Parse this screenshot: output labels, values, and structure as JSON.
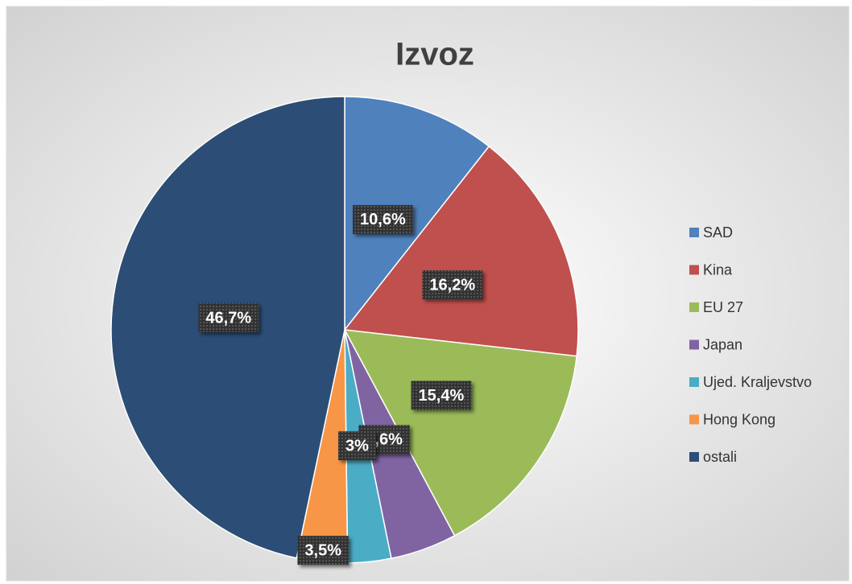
{
  "chart_data": {
    "type": "pie",
    "title": "Izvoz",
    "categories": [
      "SAD",
      "Kina",
      "EU 27",
      "Japan",
      "Ujed. Kraljevstvo",
      "Hong Kong",
      "ostali"
    ],
    "values": [
      10.6,
      16.2,
      15.4,
      4.6,
      3,
      3.5,
      46.7
    ],
    "value_labels": [
      "10,6%",
      "16,2%",
      "15,4%",
      "4,6%",
      "3%",
      "3,5%",
      "46,7%"
    ],
    "colors": [
      "#4f81bd",
      "#c0504d",
      "#9bbb59",
      "#8064a2",
      "#4bacc6",
      "#f79646",
      "#2c4d75"
    ],
    "legend": "right"
  }
}
